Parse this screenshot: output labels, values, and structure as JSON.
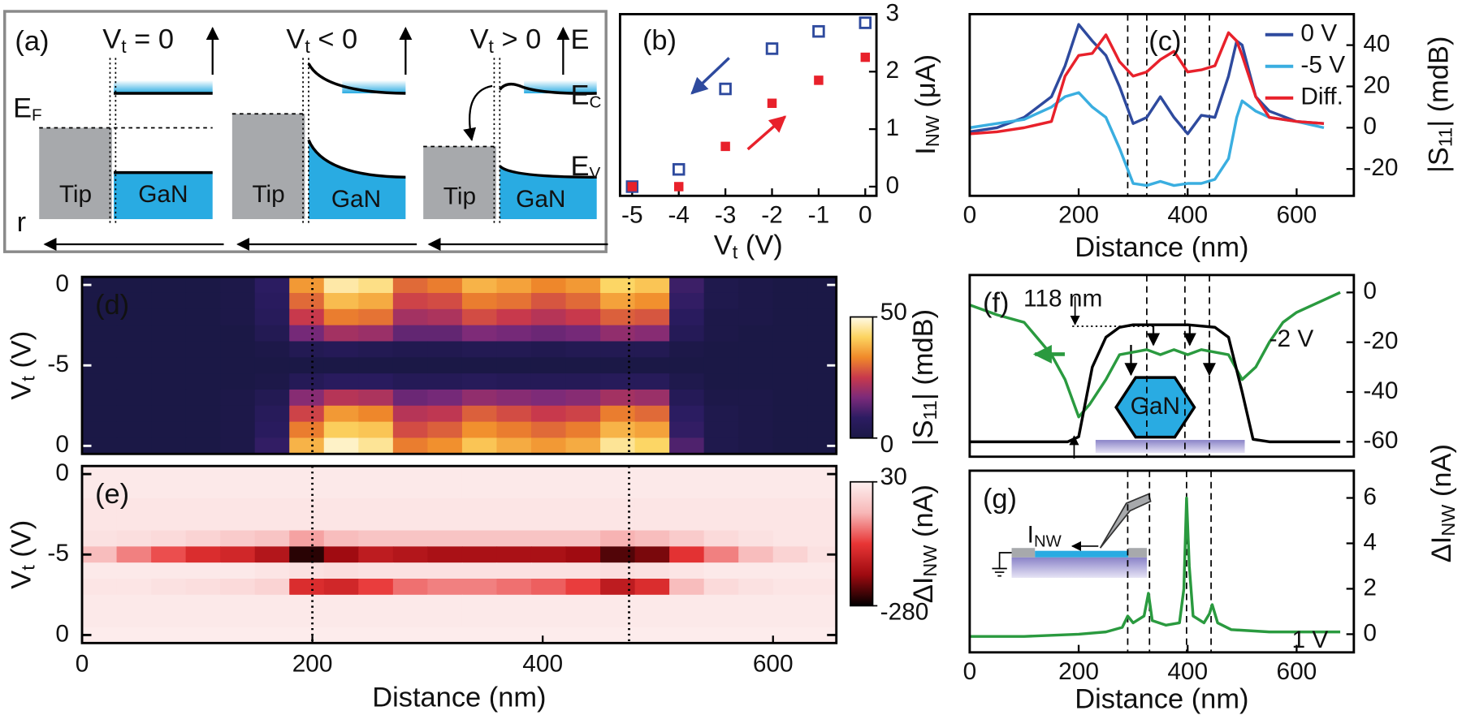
{
  "panel_a": {
    "label": "(a)",
    "axis_energy": "E",
    "axis_r": "r",
    "fermi": {
      "main": "E",
      "sub": "F"
    },
    "conduction": {
      "main": "E",
      "sub": "C"
    },
    "valence": {
      "main": "E",
      "sub": "V"
    },
    "panels": [
      {
        "title": {
          "main": "V",
          "sub": "t",
          "rest": " = 0"
        },
        "tip": "Tip",
        "material": "GaN"
      },
      {
        "title": {
          "main": "V",
          "sub": "t",
          "rest": " < 0"
        },
        "tip": "Tip",
        "material": "GaN"
      },
      {
        "title": {
          "main": "V",
          "sub": "t",
          "rest": " > 0"
        },
        "tip": "Tip",
        "material": "GaN"
      }
    ]
  },
  "chart_data": [
    {
      "type": "scatter",
      "label": "(b)",
      "xlabel": {
        "main": "V",
        "sub": "t",
        "rest": " (V)"
      },
      "ylabel": {
        "main": "I",
        "sub": "NW",
        "rest": " (μA)"
      },
      "x": [
        -5,
        -4,
        -3,
        -2,
        -1,
        0
      ],
      "series": [
        {
          "color": "#2e4a9e",
          "marker": "open-square",
          "values": [
            0,
            0.3,
            1.7,
            2.4,
            2.7,
            2.85
          ]
        },
        {
          "color": "#e8212b",
          "marker": "filled-square",
          "values": [
            0,
            0,
            0.7,
            1.45,
            1.85,
            2.25
          ]
        }
      ],
      "xlim": [
        -5.26,
        0.24
      ],
      "ylim": [
        -0.16,
        3
      ],
      "xticks": [
        -5,
        -4,
        -3,
        -2,
        -1,
        0
      ],
      "yticks": [
        0,
        1,
        2,
        3
      ]
    },
    {
      "type": "line",
      "label": "(c)",
      "xlabel": "Distance (nm)",
      "ylabel": {
        "main": "|S",
        "sub": "11",
        "rest": "| (mdB)"
      },
      "x": [
        0,
        50,
        100,
        150,
        175,
        200,
        225,
        250,
        275,
        300,
        325,
        350,
        375,
        400,
        425,
        450,
        475,
        490,
        500,
        525,
        550,
        600,
        650
      ],
      "series": [
        {
          "name": "0 V",
          "color": "#2e4a9e",
          "values": [
            -2,
            0,
            5,
            15,
            30,
            50,
            42,
            35,
            20,
            2,
            5,
            15,
            5,
            -3,
            6,
            5,
            25,
            42,
            40,
            15,
            8,
            3,
            2
          ]
        },
        {
          "name": "-5 V",
          "color": "#3aaee0",
          "values": [
            0,
            2,
            4,
            10,
            15,
            17,
            10,
            5,
            -10,
            -27,
            -28,
            -26,
            -28,
            -27,
            -27,
            -25,
            -15,
            5,
            13,
            8,
            5,
            3,
            0
          ]
        },
        {
          "name": "Diff.",
          "color": "#e8212b",
          "values": [
            -3,
            -2,
            0,
            3,
            25,
            35,
            36,
            45,
            32,
            25,
            27,
            33,
            37,
            27,
            28,
            30,
            46,
            42,
            35,
            15,
            5,
            3,
            2
          ]
        }
      ],
      "xlim": [
        0,
        705
      ],
      "ylim": [
        -33,
        55
      ],
      "xticks": [
        0,
        200,
        400,
        600
      ],
      "yticks": [
        -20,
        0,
        20,
        40
      ],
      "vlines": [
        290,
        325,
        395,
        440
      ],
      "legend": "upper-right"
    },
    {
      "type": "heatmap",
      "label": "(d)",
      "ylabel": {
        "main": "V",
        "sub": "t",
        "rest": " (V)"
      },
      "x": [
        15,
        45,
        75,
        105,
        135,
        165,
        195,
        225,
        255,
        285,
        315,
        345,
        375,
        405,
        435,
        465,
        495,
        525,
        555,
        585,
        615,
        645
      ],
      "y": [
        0,
        -1,
        -2,
        -3,
        -4,
        -5,
        -4,
        -3,
        -2,
        -1,
        0
      ],
      "values": [
        [
          0,
          0,
          0,
          0,
          1,
          8,
          35,
          46,
          44,
          30,
          32,
          38,
          36,
          33,
          35,
          42,
          40,
          10,
          2,
          1,
          0,
          0
        ],
        [
          0,
          0,
          0,
          0,
          1,
          7,
          30,
          39,
          37,
          26,
          27,
          32,
          31,
          28,
          30,
          36,
          34,
          9,
          2,
          1,
          0,
          0
        ],
        [
          0,
          0,
          0,
          0,
          1,
          6,
          25,
          32,
          31,
          21,
          22,
          27,
          25,
          23,
          25,
          29,
          28,
          7,
          1,
          1,
          0,
          0
        ],
        [
          0,
          0,
          0,
          0,
          0,
          4,
          16,
          21,
          20,
          14,
          14,
          17,
          16,
          15,
          16,
          19,
          18,
          5,
          1,
          0,
          0,
          0
        ],
        [
          0,
          0,
          0,
          0,
          0,
          1,
          4,
          5,
          4,
          3,
          3,
          4,
          4,
          3,
          4,
          4,
          4,
          1,
          0,
          0,
          0,
          0
        ],
        [
          0,
          0,
          0,
          0,
          0,
          0,
          0,
          0,
          0,
          0,
          0,
          0,
          0,
          0,
          0,
          0,
          0,
          0,
          0,
          0,
          0,
          0
        ],
        [
          0,
          0,
          0,
          0,
          0,
          1,
          5,
          7,
          7,
          5,
          5,
          6,
          5,
          5,
          5,
          6,
          6,
          2,
          0,
          0,
          0,
          0
        ],
        [
          0,
          0,
          0,
          0,
          1,
          4,
          18,
          23,
          22,
          15,
          16,
          19,
          18,
          17,
          18,
          21,
          20,
          5,
          1,
          1,
          0,
          0
        ],
        [
          0,
          0,
          0,
          0,
          1,
          6,
          26,
          35,
          33,
          23,
          24,
          29,
          27,
          25,
          26,
          32,
          30,
          8,
          2,
          1,
          0,
          0
        ],
        [
          0,
          0,
          0,
          0,
          1,
          7,
          32,
          41,
          40,
          27,
          29,
          34,
          32,
          30,
          32,
          38,
          36,
          9,
          2,
          1,
          0,
          0
        ],
        [
          0,
          0,
          0,
          0,
          1,
          9,
          38,
          48,
          45,
          32,
          34,
          40,
          37,
          35,
          37,
          45,
          42,
          12,
          2,
          1,
          0,
          0
        ]
      ],
      "xlim": [
        0,
        655
      ],
      "vlines": [
        200,
        475
      ],
      "colorbar": {
        "lim": [
          0,
          50
        ],
        "ticks": [
          0,
          50
        ],
        "label": {
          "main": "|S",
          "sub": "11",
          "rest": "| (mdB)"
        },
        "colors": [
          "#1b1846",
          "#2c1c62",
          "#7b2a7a",
          "#c8394c",
          "#f08a2a",
          "#fcd460",
          "#fffbe8"
        ]
      }
    },
    {
      "type": "heatmap",
      "label": "(e)",
      "xlabel": "Distance (nm)",
      "ylabel": {
        "main": "V",
        "sub": "t",
        "rest": " (V)"
      },
      "x": [
        15,
        45,
        75,
        105,
        135,
        165,
        195,
        225,
        255,
        285,
        315,
        345,
        375,
        405,
        435,
        465,
        495,
        525,
        555,
        585,
        615,
        645
      ],
      "y": [
        0,
        -1,
        -2,
        -3,
        -4,
        -5,
        -4,
        -3,
        -2,
        -1,
        0
      ],
      "values": [
        [
          20,
          20,
          20,
          20,
          20,
          20,
          20,
          20,
          20,
          20,
          20,
          20,
          20,
          20,
          20,
          20,
          20,
          20,
          20,
          20,
          20,
          20
        ],
        [
          20,
          20,
          20,
          20,
          20,
          20,
          20,
          20,
          20,
          20,
          20,
          20,
          20,
          20,
          20,
          20,
          20,
          20,
          20,
          20,
          20,
          20
        ],
        [
          15,
          15,
          15,
          15,
          15,
          15,
          15,
          15,
          15,
          15,
          15,
          15,
          15,
          15,
          15,
          15,
          15,
          15,
          15,
          15,
          15,
          15
        ],
        [
          15,
          15,
          15,
          15,
          15,
          15,
          15,
          15,
          15,
          15,
          15,
          15,
          15,
          15,
          15,
          15,
          15,
          15,
          15,
          15,
          15,
          15
        ],
        [
          10,
          5,
          0,
          -10,
          -20,
          -30,
          -60,
          -40,
          -30,
          -30,
          -30,
          -30,
          -30,
          -30,
          -30,
          -50,
          -40,
          -20,
          0,
          10,
          15,
          15
        ],
        [
          -40,
          -80,
          -110,
          -140,
          -150,
          -180,
          -260,
          -200,
          -170,
          -180,
          -190,
          -190,
          -190,
          -190,
          -200,
          -240,
          -220,
          -130,
          -80,
          -40,
          -10,
          10
        ],
        [
          20,
          20,
          20,
          20,
          20,
          15,
          10,
          5,
          10,
          10,
          10,
          10,
          10,
          10,
          10,
          5,
          10,
          15,
          20,
          20,
          20,
          20
        ],
        [
          15,
          15,
          10,
          5,
          0,
          -10,
          -140,
          -150,
          -120,
          -90,
          -80,
          -80,
          -90,
          -100,
          -120,
          -170,
          -140,
          -40,
          0,
          10,
          15,
          15
        ],
        [
          20,
          20,
          20,
          20,
          20,
          20,
          20,
          20,
          20,
          20,
          20,
          20,
          20,
          20,
          20,
          20,
          20,
          20,
          20,
          20,
          20,
          20
        ],
        [
          20,
          20,
          20,
          20,
          20,
          20,
          20,
          20,
          20,
          20,
          20,
          20,
          20,
          20,
          20,
          20,
          20,
          20,
          20,
          20,
          20,
          20
        ],
        [
          25,
          25,
          25,
          25,
          25,
          25,
          25,
          25,
          25,
          25,
          25,
          25,
          25,
          25,
          25,
          25,
          25,
          25,
          25,
          25,
          25,
          25
        ]
      ],
      "xlim": [
        0,
        655
      ],
      "xticks": [
        0,
        200,
        400,
        600
      ],
      "vlines": [
        200,
        475
      ],
      "colorbar": {
        "lim": [
          -280,
          30
        ],
        "ticks": [
          -280,
          30
        ],
        "label": {
          "main": "ΔI",
          "sub": "NW",
          "rest": " (nA)"
        },
        "colors": [
          "#000000",
          "#9e0a10",
          "#e83535",
          "#f7b7b7",
          "#fdf0f0"
        ]
      }
    },
    {
      "type": "line",
      "label": "(f)",
      "annotations": {
        "height": "118 nm",
        "material": "GaN"
      },
      "series": [
        {
          "name": "-2 V",
          "color": "#2a9a3f",
          "x": [
            0,
            50,
            100,
            150,
            175,
            200,
            220,
            250,
            275,
            300,
            325,
            350,
            375,
            400,
            425,
            450,
            475,
            500,
            525,
            550,
            575,
            600,
            650,
            680
          ],
          "values": [
            -5,
            -9,
            -12,
            -25,
            -35,
            -50,
            -45,
            -35,
            -25,
            -24,
            -23,
            -25,
            -23,
            -25,
            -23,
            -24,
            -25,
            -35,
            -30,
            -20,
            -12,
            -8,
            -3,
            0
          ]
        },
        {
          "color": "#000000",
          "x": [
            0,
            100,
            180,
            200,
            225,
            250,
            275,
            300,
            400,
            450,
            475,
            500,
            520,
            550,
            680
          ],
          "values": [
            -60,
            -60,
            -60,
            -58,
            -30,
            -18,
            -14,
            -13,
            -13,
            -14,
            -18,
            -40,
            -59,
            -60,
            -60
          ]
        }
      ],
      "xlim": [
        0,
        705
      ],
      "ylim": [
        -66,
        7
      ],
      "yticks": [
        -60,
        -40,
        -20,
        0
      ],
      "vlines": [
        325,
        395,
        440
      ]
    },
    {
      "type": "line",
      "label": "(g)",
      "xlabel": "Distance (nm)",
      "ylabel": {
        "main": "ΔI",
        "sub": "NW",
        "rest": " (nA)"
      },
      "inset_label": {
        "main": "I",
        "sub": "NW"
      },
      "series": [
        {
          "name": "1 V",
          "color": "#2a9a3f",
          "x": [
            0,
            100,
            200,
            250,
            280,
            290,
            300,
            320,
            328,
            335,
            360,
            385,
            393,
            398,
            403,
            410,
            430,
            440,
            445,
            455,
            480,
            550,
            680
          ],
          "values": [
            -0.1,
            -0.1,
            0,
            0.1,
            0.3,
            0.8,
            0.5,
            0.8,
            1.8,
            0.6,
            0.4,
            0.5,
            2,
            6,
            3,
            0.8,
            0.5,
            0.9,
            1.3,
            0.5,
            0.2,
            0.1,
            0.1
          ]
        }
      ],
      "xlim": [
        0,
        705
      ],
      "ylim": [
        -0.8,
        7.2
      ],
      "xticks": [
        0,
        200,
        400,
        600
      ],
      "yticks": [
        0,
        2,
        4,
        6
      ],
      "vlines": [
        290,
        330,
        398,
        443
      ]
    }
  ]
}
